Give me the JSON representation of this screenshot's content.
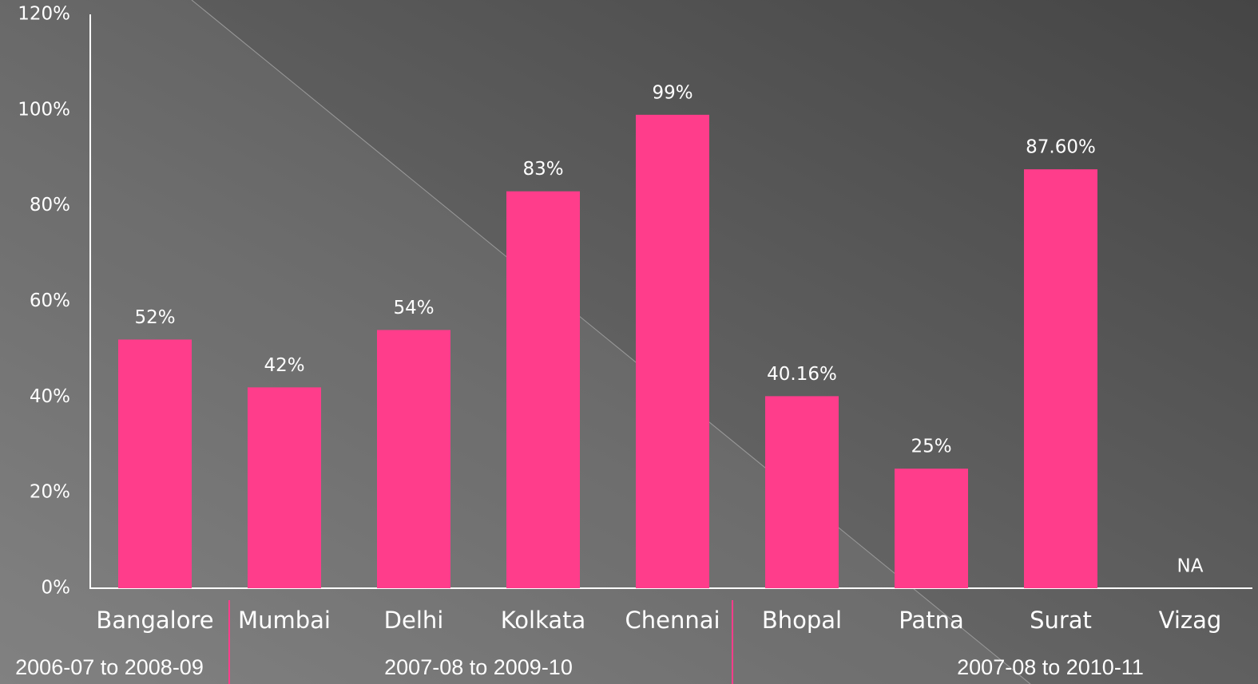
{
  "chart_data": {
    "type": "bar",
    "categories": [
      "Bangalore",
      "Mumbai",
      "Delhi",
      "Kolkata",
      "Chennai",
      "Bhopal",
      "Patna",
      "Surat",
      "Vizag"
    ],
    "values": [
      52,
      42,
      54,
      83,
      99,
      40.16,
      25,
      87.6,
      null
    ],
    "value_labels": [
      "52%",
      "42%",
      "54%",
      "83%",
      "99%",
      "40.16%",
      "25%",
      "87.60%",
      "NA"
    ],
    "color": "#ff3d8b",
    "ylim": [
      0,
      120
    ],
    "yticks": [
      {
        "value": 0,
        "label": "0%"
      },
      {
        "value": 20,
        "label": "20%"
      },
      {
        "value": 40,
        "label": "40%"
      },
      {
        "value": 60,
        "label": "60%"
      },
      {
        "value": 80,
        "label": "80%"
      },
      {
        "value": 100,
        "label": "100%"
      },
      {
        "value": 120,
        "label": "120%"
      }
    ],
    "groups": [
      "2006-07 to 2008-09",
      "2007-08 to 2009-10",
      "2007-08 to 2010-11"
    ]
  }
}
